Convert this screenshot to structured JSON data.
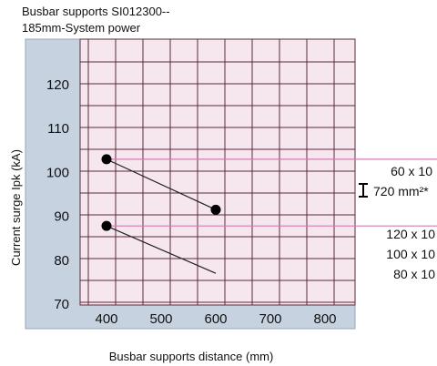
{
  "title_lines": [
    "Busbar supports SI012300--",
    "185mm-System power"
  ],
  "chart_data": {
    "type": "scatter",
    "xlabel": "Busbar supports distance (mm)",
    "ylabel": "Current surge Ipk (kA)",
    "xlim": [
      400,
      800
    ],
    "ylim": [
      70,
      120
    ],
    "x_ticks": [
      400,
      500,
      600,
      700,
      800
    ],
    "y_ticks": [
      70,
      80,
      90,
      100,
      110,
      120
    ],
    "grid": true,
    "colors": {
      "plot_background": "#f6e6ee",
      "frame_background": "#c6d2df",
      "grid": "#5a2b3c",
      "reference_lines": "#d67bb3",
      "points": "#000000"
    },
    "series": [
      {
        "name": "60 x 10 | 720 mm²*",
        "points": [
          {
            "x": 400,
            "y": 102.8
          },
          {
            "x": 600,
            "y": 91.3
          }
        ],
        "markers": [
          true,
          true
        ]
      },
      {
        "name": "120 x 10 | 100 x 10 | 80 x 10",
        "points": [
          {
            "x": 400,
            "y": 87.6
          },
          {
            "x": 600,
            "y": 76.8
          }
        ],
        "markers": [
          true,
          false
        ]
      }
    ],
    "reference_lines_y": [
      102.8,
      87.6
    ],
    "legend": {
      "group1": {
        "lines": [
          "60 x 10",
          "720 mm²*"
        ]
      },
      "group2": {
        "lines": [
          "120 x 10",
          "100 x 10",
          "80 x 10"
        ]
      }
    }
  }
}
